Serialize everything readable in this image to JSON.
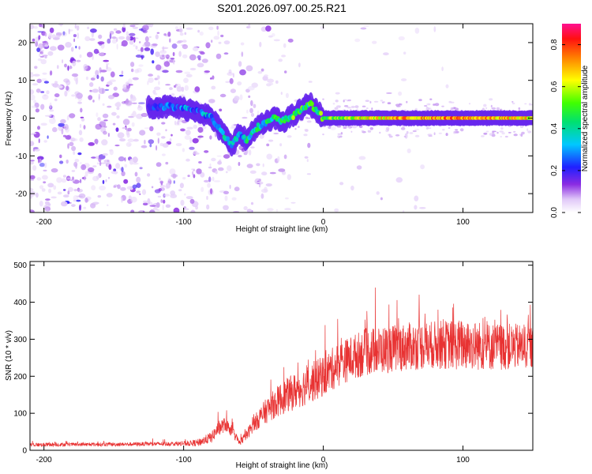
{
  "title": "S201.2026.097.00.25.R21",
  "chart_data": [
    {
      "type": "heatmap",
      "xlabel": "Height of straight line (km)",
      "ylabel": "Frequency (Hz)",
      "xlim": [
        -210,
        150
      ],
      "ylim": [
        -25,
        25
      ],
      "xticks": [
        -200,
        -100,
        0,
        100
      ],
      "yticks": [
        -20,
        -10,
        0,
        10,
        20
      ],
      "colorbar": {
        "label": "Normalized spectral amplitude",
        "range": [
          0,
          0.9
        ],
        "ticks": [
          0.0,
          0.2,
          0.4,
          0.6,
          0.8
        ]
      },
      "ridge": {
        "x": [
          -120,
          -110,
          -100,
          -90,
          -80,
          -70,
          -65,
          -60,
          -55,
          -50,
          -45,
          -40,
          -35,
          -30,
          -20,
          -10,
          -5,
          0,
          10,
          50,
          100,
          150
        ],
        "y": [
          3,
          3,
          2.5,
          2,
          0,
          -5,
          -7,
          -4,
          -6,
          -3,
          -2,
          -1,
          0,
          -1,
          1,
          4,
          2,
          0,
          0,
          0,
          0,
          0
        ],
        "amplitude": [
          0.2,
          0.25,
          0.3,
          0.3,
          0.35,
          0.4,
          0.4,
          0.35,
          0.4,
          0.45,
          0.4,
          0.45,
          0.5,
          0.45,
          0.55,
          0.5,
          0.5,
          0.55,
          0.6,
          0.75,
          0.8,
          0.7
        ]
      }
    },
    {
      "type": "line",
      "xlabel": "Height of straight line (km)",
      "ylabel": "SNR (10 * v/v)",
      "xlim": [
        -210,
        150
      ],
      "ylim": [
        0,
        510
      ],
      "xticks": [
        -200,
        -100,
        0,
        100
      ],
      "yticks": [
        0,
        100,
        200,
        300,
        400,
        500
      ],
      "color": "#e83232",
      "series": [
        {
          "name": "SNR",
          "envelope": {
            "x": [
              -210,
              -150,
              -100,
              -90,
              -80,
              -75,
              -70,
              -65,
              -60,
              -55,
              -50,
              -45,
              -40,
              -30,
              -20,
              -10,
              0,
              10,
              20,
              30,
              40,
              60,
              80,
              100,
              120,
              150
            ],
            "mean": [
              15,
              16,
              18,
              20,
              35,
              60,
              70,
              50,
              20,
              40,
              70,
              90,
              110,
              140,
              160,
              180,
              200,
              230,
              250,
              265,
              270,
              280,
              285,
              285,
              280,
              280
            ],
            "spread": [
              10,
              10,
              12,
              20,
              30,
              40,
              40,
              30,
              15,
              30,
              40,
              60,
              70,
              90,
              100,
              110,
              110,
              120,
              120,
              130,
              130,
              130,
              130,
              140,
              130,
              120
            ]
          }
        }
      ]
    }
  ]
}
